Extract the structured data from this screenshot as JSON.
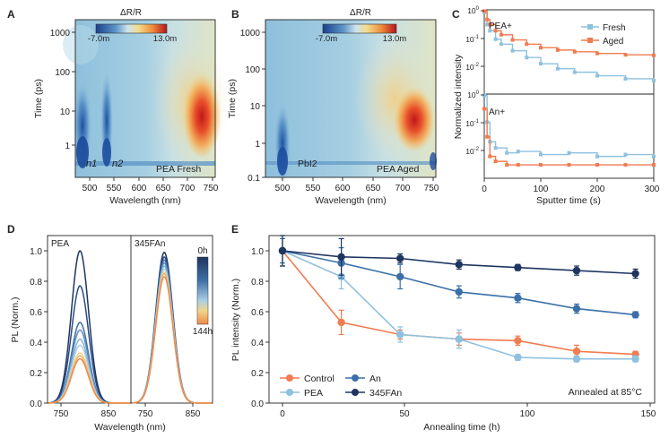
{
  "chart_data": [
    {
      "panel": "A",
      "type": "heatmap",
      "title": "ΔR/R",
      "colorbar_ticks": [
        "-7.0m",
        "13.0m"
      ],
      "xlabel": "Wavelength (nm)",
      "ylabel": "Time (ps)",
      "x_ticks": [
        "500",
        "550",
        "600",
        "650",
        "700",
        "750"
      ],
      "y_ticks": [
        "1",
        "10",
        "100",
        "1000"
      ],
      "xlim": [
        470,
        755
      ],
      "ylim": [
        0.25,
        1800
      ],
      "yscale": "log",
      "annotations": [
        "n1",
        "n2"
      ],
      "label": "PEA Fresh"
    },
    {
      "panel": "B",
      "type": "heatmap",
      "title": "ΔR/R",
      "colorbar_ticks": [
        "-7.0m",
        "13.0m"
      ],
      "xlabel": "Wavelength (nm)",
      "ylabel": "Time (ps)",
      "x_ticks": [
        "500",
        "550",
        "600",
        "650",
        "700",
        "750"
      ],
      "y_ticks": [
        "0.1",
        "1",
        "10",
        "100",
        "1000"
      ],
      "xlim": [
        470,
        755
      ],
      "ylim": [
        0.1,
        1800
      ],
      "yscale": "log",
      "annotations": [
        "PbI2"
      ],
      "label": "PEA Aged"
    },
    {
      "panel": "C",
      "type": "line",
      "xlabel": "Sputter time (s)",
      "ylabel": "Normalized intensity",
      "x_ticks": [
        "0",
        "100",
        "200",
        "300"
      ],
      "xlim": [
        0,
        300
      ],
      "legend": [
        "Fresh",
        "Aged"
      ],
      "subplots": [
        {
          "label": "PEA+",
          "yscale": "log",
          "ylim": [
            0.001,
            1
          ],
          "y_ticks": [
            "10-3",
            "10-2",
            "10-1",
            "100"
          ],
          "series": [
            {
              "name": "Fresh",
              "x": [
                0,
                5,
                10,
                20,
                30,
                50,
                75,
                100,
                130,
                160,
                200,
                250,
                300
              ],
              "values": [
                0.8,
                0.3,
                0.18,
                0.09,
                0.06,
                0.035,
                0.02,
                0.012,
                0.008,
                0.006,
                0.0045,
                0.0035,
                0.003
              ]
            },
            {
              "name": "Aged",
              "x": [
                0,
                5,
                10,
                20,
                30,
                50,
                75,
                100,
                130,
                160,
                200,
                250,
                300
              ],
              "values": [
                0.9,
                0.45,
                0.3,
                0.18,
                0.13,
                0.085,
                0.06,
                0.045,
                0.037,
                0.032,
                0.028,
                0.025,
                0.024
              ]
            }
          ]
        },
        {
          "label": "An+",
          "yscale": "log",
          "ylim": [
            0.001,
            1
          ],
          "y_ticks": [
            "10-3",
            "10-2",
            "10-1",
            "100"
          ],
          "series": [
            {
              "name": "Fresh",
              "x": [
                0,
                5,
                10,
                20,
                40,
                60,
                100,
                150,
                200,
                250,
                300
              ],
              "values": [
                0.9,
                0.1,
                0.02,
                0.012,
                0.008,
                0.009,
                0.007,
                0.008,
                0.006,
                0.007,
                0.006
              ]
            },
            {
              "name": "Aged",
              "x": [
                0,
                5,
                10,
                20,
                40,
                60,
                100,
                150,
                200,
                250,
                300
              ],
              "values": [
                0.3,
                0.03,
                0.006,
                0.004,
                0.003,
                0.003,
                0.003,
                0.003,
                0.003,
                0.003,
                0.003
              ]
            }
          ]
        }
      ]
    },
    {
      "panel": "D",
      "type": "line",
      "xlabel": "Wavelength (nm)",
      "ylabel": "PL (Norm.)",
      "x_ticks": [
        "750",
        "850",
        "750",
        "850"
      ],
      "y_ticks": [
        "0.0",
        "0.2",
        "0.4",
        "0.6",
        "0.8",
        "1.0"
      ],
      "ylim": [
        0,
        1.1
      ],
      "subplot_labels": [
        "PEA",
        "345FAn"
      ],
      "colorbar_labels": [
        "0h",
        "144h"
      ],
      "peak_nm": 790,
      "series": [
        {
          "name": "PEA",
          "peaks": [
            1.0,
            0.77,
            0.53,
            0.48,
            0.42,
            0.38,
            0.33,
            0.31,
            0.29
          ]
        },
        {
          "name": "345FAn",
          "peaks": [
            0.99,
            0.96,
            0.94,
            0.92,
            0.9,
            0.88,
            0.86,
            0.85,
            0.83
          ]
        }
      ]
    },
    {
      "panel": "E",
      "type": "line",
      "xlabel": "Annealing time (h)",
      "ylabel": "PL intensity (Norm.)",
      "x_ticks": [
        "0",
        "50",
        "100",
        "150"
      ],
      "y_ticks": [
        "0.0",
        "0.2",
        "0.4",
        "0.6",
        "0.8",
        "1.0"
      ],
      "xlim": [
        -8,
        150
      ],
      "ylim": [
        0,
        1.1
      ],
      "annotation": "Annealed at 85°C",
      "x": [
        0,
        24,
        48,
        72,
        96,
        120,
        144
      ],
      "series": [
        {
          "name": "Control",
          "color": "#f07c50",
          "values": [
            1.0,
            0.53,
            0.45,
            0.42,
            0.41,
            0.34,
            0.32
          ],
          "err": [
            0.1,
            0.08,
            0.03,
            0.04,
            0.03,
            0.04,
            0.02
          ]
        },
        {
          "name": "PEA",
          "color": "#8fc1de",
          "values": [
            1.0,
            0.83,
            0.45,
            0.42,
            0.3,
            0.29,
            0.29
          ],
          "err": [
            0.1,
            0.08,
            0.05,
            0.06,
            0.02,
            0.02,
            0.02
          ]
        },
        {
          "name": "An",
          "color": "#3b6fa8",
          "values": [
            1.0,
            0.92,
            0.83,
            0.73,
            0.69,
            0.62,
            0.58
          ],
          "err": [
            0.08,
            0.1,
            0.08,
            0.04,
            0.03,
            0.03,
            0.02
          ]
        },
        {
          "name": "345FAn",
          "color": "#1e3560",
          "values": [
            1.0,
            0.96,
            0.95,
            0.91,
            0.89,
            0.87,
            0.85
          ],
          "err": [
            0.1,
            0.12,
            0.03,
            0.03,
            0.02,
            0.03,
            0.03
          ]
        }
      ]
    }
  ]
}
